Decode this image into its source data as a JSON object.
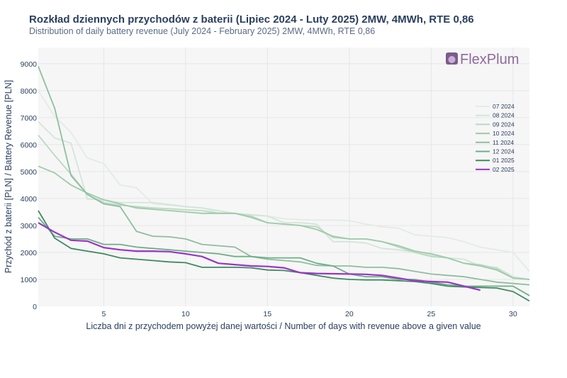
{
  "chart_data": {
    "type": "line",
    "title": "Rozkład dziennych przychodów z baterii (Lipiec 2024 - Luty 2025) 2MW, 4MWh, RTE 0,86",
    "subtitle": "Distribution of daily battery revenue (July 2024 - February 2025) 2MW, 4MWh, RTE 0,86",
    "xlabel": "Liczba dni z przychodem powyżej danej wartości / Number of days with revenue above a given value",
    "ylabel": "Przychód z baterii [PLN] / Battery Revenue [PLN]",
    "xlim": [
      1,
      31
    ],
    "ylim": [
      0,
      9600
    ],
    "xticks": [
      5,
      10,
      15,
      20,
      25,
      30
    ],
    "yticks": [
      0,
      1000,
      2000,
      3000,
      4000,
      5000,
      6000,
      7000,
      8000,
      9000
    ],
    "legend_position": "right",
    "brand": "FlexPlum",
    "series": [
      {
        "name": "07 2024",
        "color": "#e3ebe6",
        "values": [
          8000,
          7050,
          6450,
          5500,
          5300,
          4500,
          4400,
          3800,
          3750,
          3700,
          3650,
          3480,
          3450,
          3380,
          3350,
          3250,
          3220,
          3200,
          3200,
          3180,
          3050,
          2950,
          2900,
          2650,
          2600,
          2550,
          2400,
          2200,
          2100,
          2000,
          1300
        ]
      },
      {
        "name": "08 2024",
        "color": "#d3e5da",
        "values": [
          6850,
          6250,
          6050,
          3980,
          3950,
          3850,
          3850,
          3850,
          3780,
          3700,
          3650,
          3550,
          3450,
          3400,
          3350,
          3100,
          3100,
          3050,
          2400,
          2400,
          2350,
          2150,
          2100,
          2000,
          1900,
          1800,
          1750,
          1500,
          1450,
          1100,
          1000
        ]
      },
      {
        "name": "09 2024",
        "color": "#b9d9c4",
        "values": [
          6350,
          5600,
          4900,
          4150,
          3850,
          3750,
          3700,
          3650,
          3620,
          3580,
          3550,
          3450,
          3450,
          3350,
          3100,
          3050,
          3000,
          2950,
          2550,
          2500,
          2500,
          2400,
          2200,
          2000,
          1850,
          1800,
          1600,
          1550,
          1400,
          1050,
          1000
        ]
      },
      {
        "name": "10 2024",
        "color": "#9ecaa9",
        "values": [
          5200,
          4950,
          4500,
          4200,
          3950,
          3800,
          3650,
          3600,
          3550,
          3500,
          3450,
          3450,
          3450,
          3300,
          3100,
          3050,
          3000,
          2850,
          2600,
          2500,
          2500,
          2400,
          2250,
          2050,
          1950,
          1800,
          1600,
          1500,
          1350,
          1050,
          1000
        ]
      },
      {
        "name": "11 2024",
        "color": "#8fbea0",
        "values": [
          8900,
          7350,
          4850,
          4150,
          3800,
          3700,
          2780,
          2600,
          2580,
          2500,
          2300,
          2250,
          2200,
          1850,
          1750,
          1700,
          1650,
          1520,
          1500,
          1500,
          1450,
          1450,
          1400,
          1300,
          1200,
          1150,
          1100,
          1000,
          900,
          850,
          800
        ]
      },
      {
        "name": "12 2024",
        "color": "#6fae88",
        "values": [
          3300,
          2600,
          2500,
          2500,
          2300,
          2300,
          2200,
          2150,
          2100,
          2050,
          2000,
          1950,
          1850,
          1850,
          1800,
          1800,
          1800,
          1600,
          1500,
          1200,
          1100,
          1100,
          1000,
          1000,
          900,
          800,
          750,
          750,
          750,
          750,
          400
        ]
      },
      {
        "name": "01 2025",
        "color": "#3f8a62",
        "values": [
          3550,
          2530,
          2150,
          2050,
          1950,
          1800,
          1750,
          1700,
          1650,
          1620,
          1450,
          1450,
          1450,
          1430,
          1350,
          1330,
          1250,
          1150,
          1050,
          1000,
          980,
          980,
          950,
          920,
          850,
          750,
          720,
          700,
          680,
          550,
          200
        ]
      },
      {
        "name": "02 2025",
        "color": "#9a35c8",
        "values": [
          3100,
          2750,
          2450,
          2420,
          2180,
          2100,
          2050,
          2050,
          2030,
          1950,
          1850,
          1600,
          1550,
          1500,
          1480,
          1430,
          1250,
          1220,
          1210,
          1200,
          1190,
          1150,
          1050,
          950,
          920,
          900,
          750,
          600
        ]
      }
    ]
  }
}
